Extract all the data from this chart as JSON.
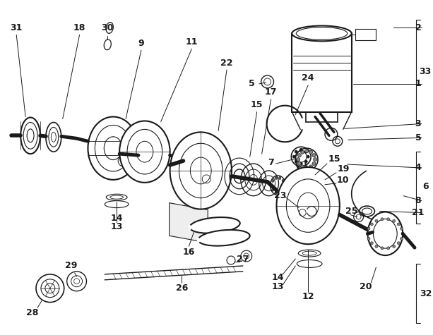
{
  "bg_color": "#ffffff",
  "dark": "#1a1a1a",
  "fig_width": 6.13,
  "fig_height": 4.75,
  "dpi": 100,
  "font_size": 9
}
